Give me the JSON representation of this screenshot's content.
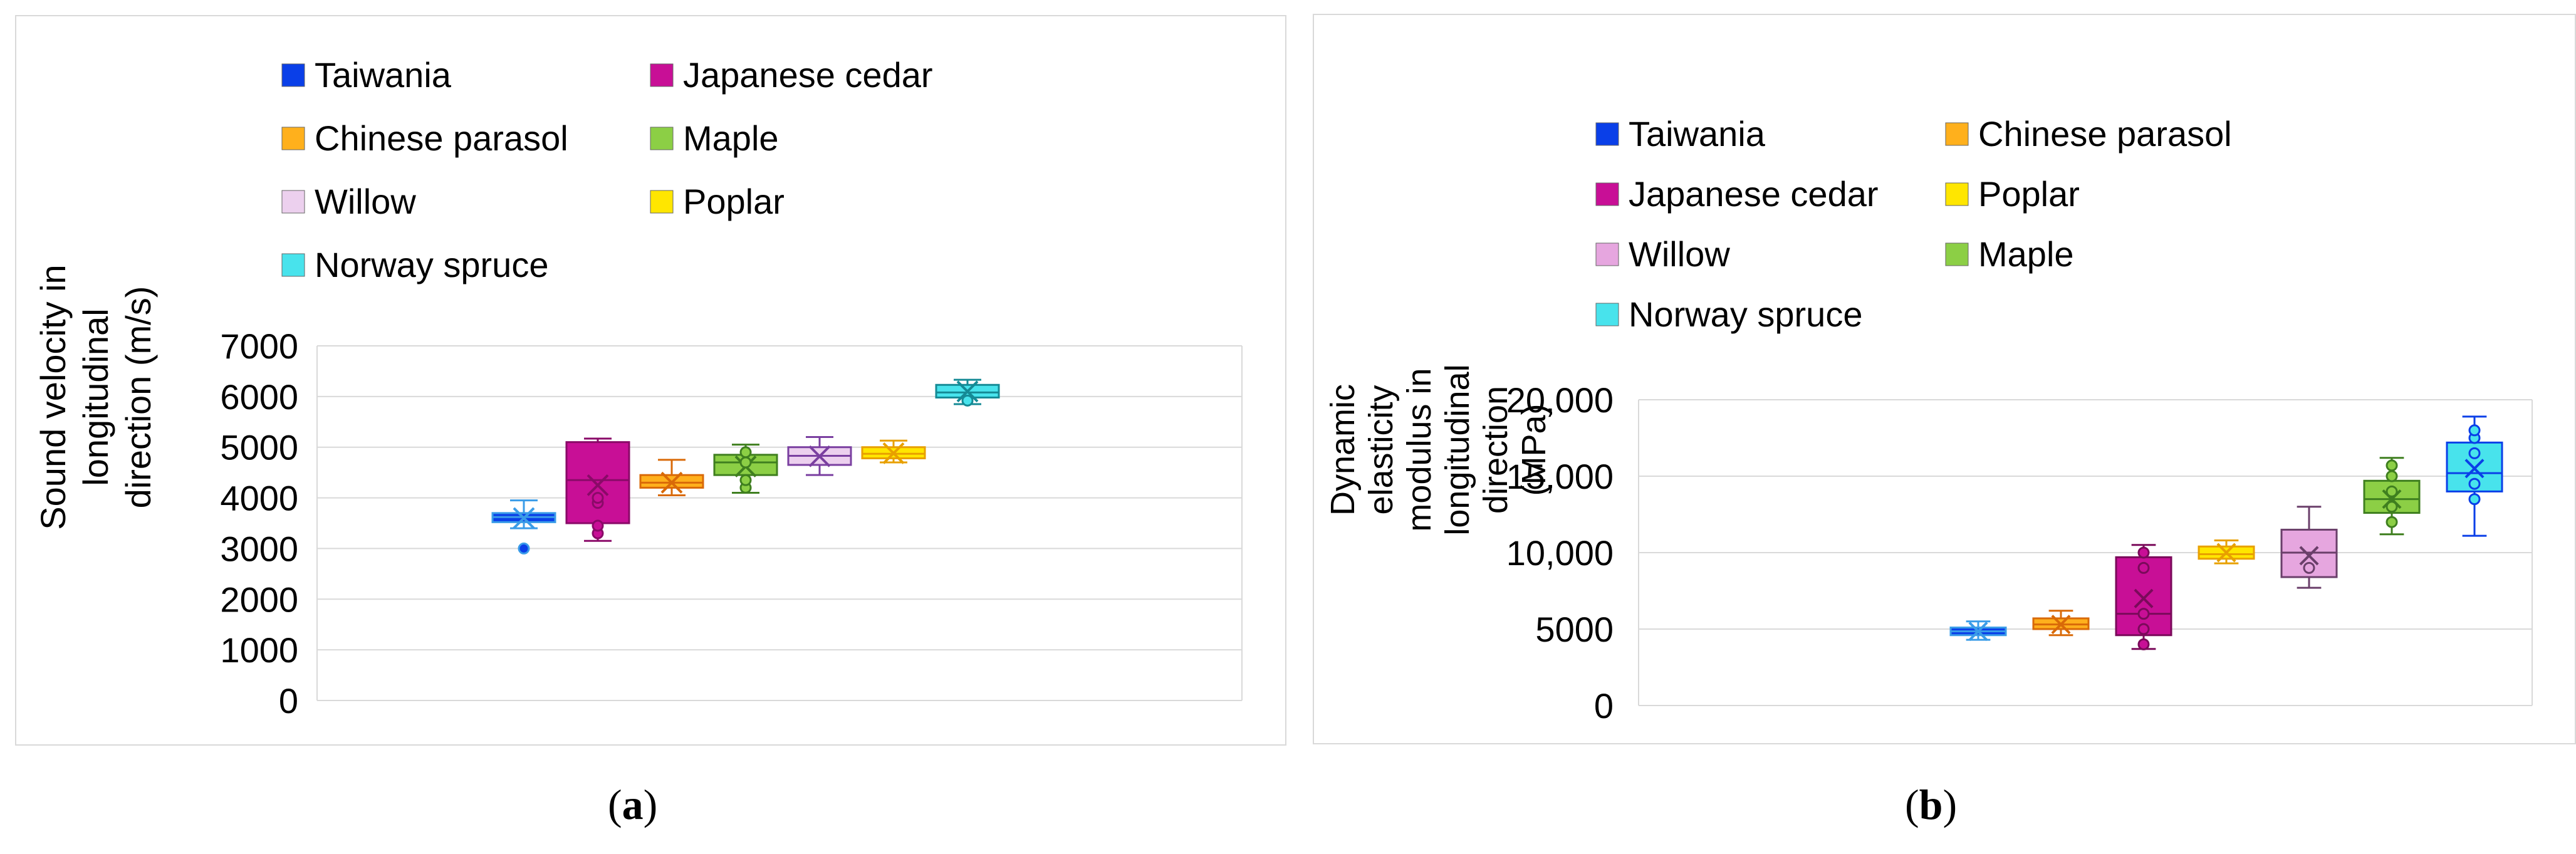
{
  "chart_data": [
    {
      "panel": "(a)",
      "type": "box",
      "title": "",
      "xlabel": "",
      "ylabel": "Sound velocity in longitudinal direction (m/s)",
      "ylabel_lines": [
        "Sound velocity in",
        "longitudinal",
        "direction (m/s)"
      ],
      "ylim": [
        0,
        7000
      ],
      "yticks": [
        {
          "value": 0,
          "label": "0"
        },
        {
          "value": 1000,
          "label": "1000"
        },
        {
          "value": 2000,
          "label": "2000"
        },
        {
          "value": 3000,
          "label": "3000"
        },
        {
          "value": 4000,
          "label": "4000"
        },
        {
          "value": 5000,
          "label": "5000"
        },
        {
          "value": 6000,
          "label": "6000"
        },
        {
          "value": 7000,
          "label": "7000"
        }
      ],
      "grid": true,
      "legend_position": "top",
      "legend": [
        {
          "label": "Taiwania",
          "color": "#0a3fe8"
        },
        {
          "label": "Japanese cedar",
          "color": "#c80f96"
        },
        {
          "label": "Chinese parasol",
          "color": "#ffb01c"
        },
        {
          "label": "Maple",
          "color": "#8ccf45"
        },
        {
          "label": "Willow",
          "color": "#ecd0ee"
        },
        {
          "label": "Poplar",
          "color": "#ffe600"
        },
        {
          "label": "Norway spruce",
          "color": "#48e3ec"
        }
      ],
      "series": [
        {
          "name": "Taiwania",
          "color": "#0a3fe8",
          "stroke": "#3a9ce8",
          "min": 3400,
          "q1": 3520,
          "median": 3620,
          "q3": 3700,
          "max": 3950,
          "mean": 3600,
          "outliers": [
            3000
          ]
        },
        {
          "name": "Japanese cedar",
          "color": "#c80f96",
          "stroke": "#8a0a68",
          "min": 3150,
          "q1": 3500,
          "median": 4350,
          "q3": 5100,
          "max": 5170,
          "mean": 4250,
          "outliers": [
            3300,
            3450,
            3900,
            4000
          ]
        },
        {
          "name": "Chinese parasol",
          "color": "#ffb01c",
          "stroke": "#d96a08",
          "min": 4050,
          "q1": 4200,
          "median": 4300,
          "q3": 4450,
          "max": 4750,
          "mean": 4300,
          "outliers": []
        },
        {
          "name": "Maple",
          "color": "#8ccf45",
          "stroke": "#3f7f1f",
          "min": 4100,
          "q1": 4450,
          "median": 4700,
          "q3": 4850,
          "max": 5050,
          "mean": 4620,
          "outliers": [
            4200,
            4350,
            4700,
            4900
          ]
        },
        {
          "name": "Willow",
          "color": "#ecd0ee",
          "stroke": "#7a3fa0",
          "min": 4450,
          "q1": 4650,
          "median": 4830,
          "q3": 5000,
          "max": 5200,
          "mean": 4820,
          "outliers": []
        },
        {
          "name": "Poplar",
          "color": "#ffe600",
          "stroke": "#e8a000",
          "min": 4700,
          "q1": 4780,
          "median": 4870,
          "q3": 5000,
          "max": 5130,
          "mean": 4880,
          "outliers": []
        },
        {
          "name": "Norway spruce",
          "color": "#48e3ec",
          "stroke": "#158a95",
          "min": 5850,
          "q1": 5980,
          "median": 6080,
          "q3": 6230,
          "max": 6330,
          "mean": 6100,
          "outliers": [
            5920
          ]
        }
      ]
    },
    {
      "panel": "(b)",
      "type": "box",
      "title": "",
      "xlabel": "",
      "ylabel": "Dynamic elasticity modulus in longitudinal direction (MPa)",
      "ylabel_lines": [
        "Dynamic",
        "elasticity",
        "modulus in",
        "longitudinal",
        "direction",
        "(MPa)"
      ],
      "ylim": [
        0,
        20000
      ],
      "yticks": [
        {
          "value": 0,
          "label": "0"
        },
        {
          "value": 5000,
          "label": "5000"
        },
        {
          "value": 10000,
          "label": "10,000"
        },
        {
          "value": 15000,
          "label": "15,000"
        },
        {
          "value": 20000,
          "label": "20,000"
        }
      ],
      "grid": true,
      "legend_position": "top",
      "legend": [
        {
          "label": "Taiwania",
          "color": "#0a3fe8"
        },
        {
          "label": "Chinese parasol",
          "color": "#ffb01c"
        },
        {
          "label": "Japanese cedar",
          "color": "#c80f96"
        },
        {
          "label": "Poplar",
          "color": "#ffe600"
        },
        {
          "label": "Willow",
          "color": "#e6a6df"
        },
        {
          "label": "Maple",
          "color": "#8ccf45"
        },
        {
          "label": "Norway spruce",
          "color": "#48e3ec"
        }
      ],
      "series": [
        {
          "name": "Taiwania",
          "color": "#0a3fe8",
          "stroke": "#3a9ce8",
          "min": 4300,
          "q1": 4600,
          "median": 4850,
          "q3": 5100,
          "max": 5500,
          "mean": 4850,
          "outliers": []
        },
        {
          "name": "Chinese parasol",
          "color": "#ffb01c",
          "stroke": "#d96a08",
          "min": 4600,
          "q1": 5000,
          "median": 5300,
          "q3": 5700,
          "max": 6200,
          "mean": 5300,
          "outliers": []
        },
        {
          "name": "Japanese cedar",
          "color": "#c80f96",
          "stroke": "#7a0a5a",
          "min": 3700,
          "q1": 4600,
          "median": 6000,
          "q3": 9700,
          "max": 10500,
          "mean": 7000,
          "outliers": [
            4000,
            5000,
            6000,
            9000,
            10000
          ]
        },
        {
          "name": "Poplar",
          "color": "#ffe600",
          "stroke": "#e8a000",
          "min": 9300,
          "q1": 9600,
          "median": 9900,
          "q3": 10400,
          "max": 10800,
          "mean": 10000,
          "outliers": []
        },
        {
          "name": "Willow",
          "color": "#e6a6df",
          "stroke": "#6a3f6a",
          "min": 7700,
          "q1": 8400,
          "median": 10000,
          "q3": 11500,
          "max": 13000,
          "mean": 9800,
          "outliers": [
            9000
          ]
        },
        {
          "name": "Maple",
          "color": "#8ccf45",
          "stroke": "#3f7f1f",
          "min": 11200,
          "q1": 12600,
          "median": 13500,
          "q3": 14700,
          "max": 16200,
          "mean": 13500,
          "outliers": [
            12000,
            13000,
            14000,
            15000,
            15700
          ]
        },
        {
          "name": "Norway spruce",
          "color": "#48e3ec",
          "stroke": "#0a3fe8",
          "min": 11100,
          "q1": 14000,
          "median": 15200,
          "q3": 17200,
          "max": 18900,
          "mean": 15500,
          "outliers": [
            13500,
            14500,
            16500,
            17500,
            18000
          ]
        }
      ]
    }
  ],
  "captions": [
    {
      "label": "a"
    },
    {
      "label": "b"
    }
  ]
}
